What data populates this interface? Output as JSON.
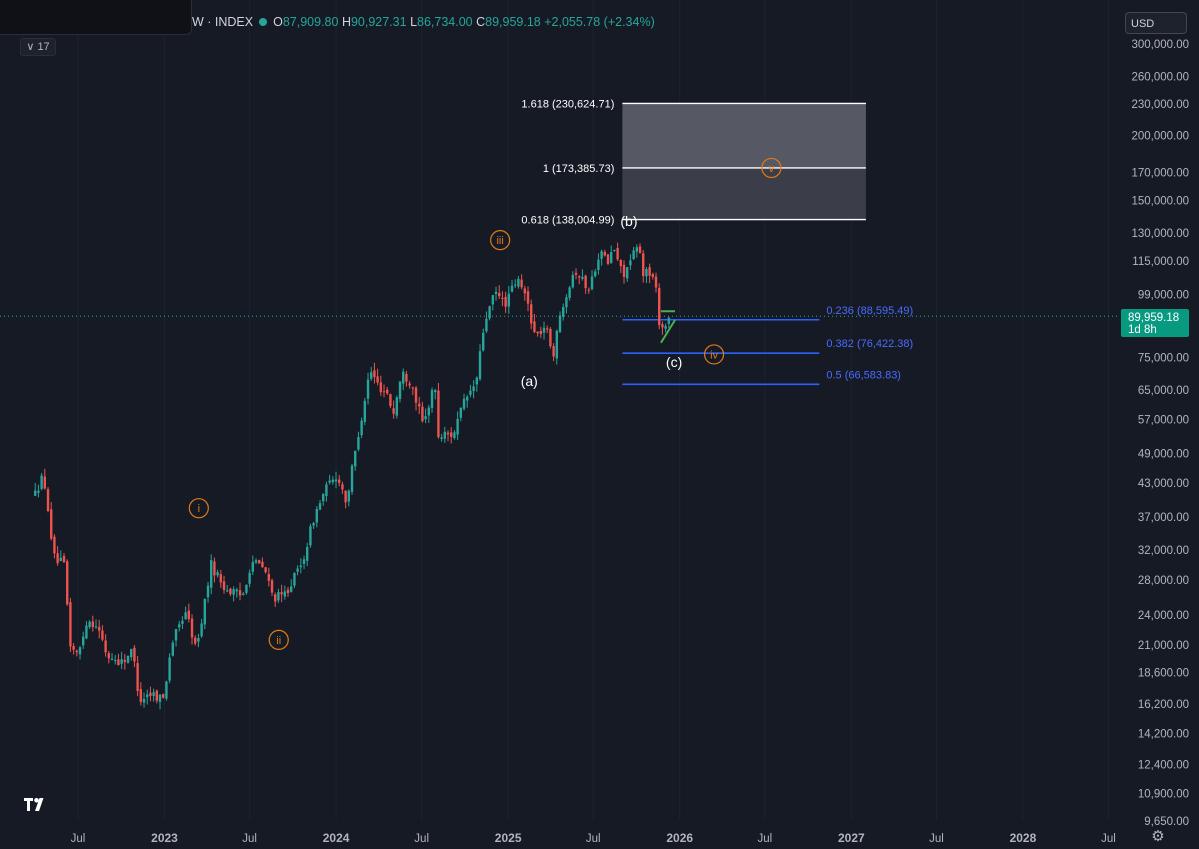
{
  "header": {
    "symbol": "W · INDEX",
    "open_label": "O",
    "open": "87,909.80",
    "high_label": "H",
    "high": "90,927.31",
    "low_label": "L",
    "low": "86,734.00",
    "close_label": "C",
    "close": "89,959.18",
    "change": "+2,055.78 (+2.34%)"
  },
  "toolbar": {
    "collapse_label": "17",
    "currency": "USD"
  },
  "price_tag": {
    "price": "89,959.18",
    "countdown": "1d 8h"
  },
  "colors": {
    "background": "#161a25",
    "up": "#26a69a",
    "down": "#ef5350",
    "fib_blue": "#2962ff",
    "wave_orange": "#e07b18",
    "triangle_green": "#4caf50"
  },
  "icons": {
    "logo": "tradingview-logo-icon",
    "settings": "gear-icon"
  },
  "chart_data": {
    "type": "candlestick",
    "y_scale": "log",
    "ylim": [
      9650,
      300000
    ],
    "y_ticks": [
      {
        "value": 300000,
        "label": "300,000.00"
      },
      {
        "value": 260000,
        "label": "260,000.00"
      },
      {
        "value": 230000,
        "label": "230,000.00"
      },
      {
        "value": 200000,
        "label": "200,000.00"
      },
      {
        "value": 170000,
        "label": "170,000.00"
      },
      {
        "value": 150000,
        "label": "150,000.00"
      },
      {
        "value": 130000,
        "label": "130,000.00"
      },
      {
        "value": 115000,
        "label": "115,000.00"
      },
      {
        "value": 99000,
        "label": "99,000.00"
      },
      {
        "value": 75000,
        "label": "75,000.00"
      },
      {
        "value": 65000,
        "label": "65,000.00"
      },
      {
        "value": 57000,
        "label": "57,000.00"
      },
      {
        "value": 49000,
        "label": "49,000.00"
      },
      {
        "value": 43000,
        "label": "43,000.00"
      },
      {
        "value": 37000,
        "label": "37,000.00"
      },
      {
        "value": 32000,
        "label": "32,000.00"
      },
      {
        "value": 28000,
        "label": "28,000.00"
      },
      {
        "value": 24000,
        "label": "24,000.00"
      },
      {
        "value": 21000,
        "label": "21,000.00"
      },
      {
        "value": 18600,
        "label": "18,600.00"
      },
      {
        "value": 16200,
        "label": "16,200.00"
      },
      {
        "value": 14200,
        "label": "14,200.00"
      },
      {
        "value": 12400,
        "label": "12,400.00"
      },
      {
        "value": 10900,
        "label": "10,900.00"
      },
      {
        "value": 9650,
        "label": "9,650.00"
      }
    ],
    "x_ticks": [
      {
        "date": "2022-07",
        "label": "Jul",
        "bold": false
      },
      {
        "date": "2023-01",
        "label": "2023",
        "bold": true
      },
      {
        "date": "2023-07",
        "label": "Jul",
        "bold": false
      },
      {
        "date": "2024-01",
        "label": "2024",
        "bold": true
      },
      {
        "date": "2024-07",
        "label": "Jul",
        "bold": false
      },
      {
        "date": "2025-01",
        "label": "2025",
        "bold": true
      },
      {
        "date": "2025-07",
        "label": "Jul",
        "bold": false
      },
      {
        "date": "2026-01",
        "label": "2026",
        "bold": true
      },
      {
        "date": "2026-07",
        "label": "Jul",
        "bold": false
      },
      {
        "date": "2027-01",
        "label": "2027",
        "bold": true
      },
      {
        "date": "2027-07",
        "label": "Jul",
        "bold": false
      },
      {
        "date": "2028-01",
        "label": "2028",
        "bold": true
      },
      {
        "date": "2028-07",
        "label": "Jul",
        "bold": false
      }
    ],
    "price_path": [
      [
        "2022-04-01",
        41000
      ],
      [
        "2022-04-15",
        44000
      ],
      [
        "2022-04-28",
        39000
      ],
      [
        "2022-05-10",
        31000
      ],
      [
        "2022-06-01",
        30000
      ],
      [
        "2022-06-15",
        21000
      ],
      [
        "2022-07-01",
        20000
      ],
      [
        "2022-07-20",
        23500
      ],
      [
        "2022-08-10",
        23000
      ],
      [
        "2022-09-01",
        20000
      ],
      [
        "2022-10-01",
        19500
      ],
      [
        "2022-10-25",
        20500
      ],
      [
        "2022-11-09",
        16500
      ],
      [
        "2022-12-01",
        17000
      ],
      [
        "2022-12-30",
        16600
      ],
      [
        "2023-01-15",
        21000
      ],
      [
        "2023-02-15",
        24500
      ],
      [
        "2023-03-10",
        20500
      ],
      [
        "2023-04-10",
        30000
      ],
      [
        "2023-05-10",
        27000
      ],
      [
        "2023-06-15",
        26000
      ],
      [
        "2023-07-05",
        30500
      ],
      [
        "2023-08-01",
        29500
      ],
      [
        "2023-08-20",
        26000
      ],
      [
        "2023-09-10",
        26000
      ],
      [
        "2023-10-20",
        30000
      ],
      [
        "2023-11-15",
        37000
      ],
      [
        "2023-12-10",
        42000
      ],
      [
        "2024-01-05",
        44500
      ],
      [
        "2024-01-23",
        39500
      ],
      [
        "2024-02-15",
        52000
      ],
      [
        "2024-03-13",
        71000
      ],
      [
        "2024-04-01",
        66000
      ],
      [
        "2024-04-20",
        64000
      ],
      [
        "2024-05-01",
        58000
      ],
      [
        "2024-05-20",
        70000
      ],
      [
        "2024-06-10",
        67000
      ],
      [
        "2024-07-05",
        55000
      ],
      [
        "2024-07-28",
        68000
      ],
      [
        "2024-08-05",
        53000
      ],
      [
        "2024-09-06",
        53500
      ],
      [
        "2024-10-01",
        62000
      ],
      [
        "2024-10-25",
        67000
      ],
      [
        "2024-11-12",
        88000
      ],
      [
        "2024-12-05",
        100000
      ],
      [
        "2024-12-25",
        95000
      ],
      [
        "2025-01-20",
        106000
      ],
      [
        "2025-02-10",
        97000
      ],
      [
        "2025-02-28",
        82000
      ],
      [
        "2025-03-20",
        86000
      ],
      [
        "2025-04-08",
        76500
      ],
      [
        "2025-04-25",
        94000
      ],
      [
        "2025-05-22",
        111000
      ],
      [
        "2025-06-22",
        101000
      ],
      [
        "2025-07-14",
        120000
      ],
      [
        "2025-08-01",
        114000
      ],
      [
        "2025-08-14",
        122000
      ],
      [
        "2025-09-01",
        108000
      ],
      [
        "2025-09-20",
        115000
      ],
      [
        "2025-10-06",
        125000
      ],
      [
        "2025-10-11",
        110000
      ],
      [
        "2025-10-30",
        109000
      ],
      [
        "2025-11-10",
        104000
      ],
      [
        "2025-11-21",
        84000
      ],
      [
        "2025-12-01",
        87000
      ],
      [
        "2025-12-12",
        89959
      ]
    ],
    "fib_extension": {
      "levels": [
        {
          "ratio": "1.618",
          "price": 230624.71,
          "label": "1.618 (230,624.71)"
        },
        {
          "ratio": "1",
          "price": 173385.73,
          "label": "1 (173,385.73)"
        },
        {
          "ratio": "0.618",
          "price": 138004.99,
          "label": "0.618 (138,004.99)"
        }
      ],
      "start": "2025-09-01",
      "end": "2027-02-01"
    },
    "fib_retracement": {
      "levels": [
        {
          "ratio": "0.236",
          "price": 88595.49,
          "label": "0.236 (88,595.49)"
        },
        {
          "ratio": "0.382",
          "price": 76422.38,
          "label": "0.382 (76,422.38)"
        },
        {
          "ratio": "0.5",
          "price": 66583.83,
          "label": "0.5 (66,583.83)"
        }
      ],
      "start": "2025-09-01",
      "end": "2026-10-25"
    },
    "triangle": {
      "start": "2025-11-22",
      "end": "2025-12-22",
      "top_price": 92000,
      "low_price": 80000,
      "apex_price": 88500
    },
    "last_price": 89959.18,
    "waves": [
      {
        "label": "i",
        "date": "2023-03-15",
        "price": 38500,
        "circled": true
      },
      {
        "label": "ii",
        "date": "2023-09-01",
        "price": 21500,
        "circled": true
      },
      {
        "label": "iii",
        "date": "2024-12-15",
        "price": 126000,
        "circled": true
      },
      {
        "label": "iv",
        "date": "2026-03-15",
        "price": 76000,
        "circled": true
      },
      {
        "label": "v",
        "date": "2026-07-15",
        "price": 173385.73,
        "circled": true
      },
      {
        "label": "(a)",
        "date": "2025-02-15",
        "price": 67500,
        "circled": false
      },
      {
        "label": "(b)",
        "date": "2025-09-15",
        "price": 137000,
        "circled": false
      },
      {
        "label": "(c)",
        "date": "2025-12-20",
        "price": 73500,
        "circled": false
      }
    ]
  }
}
